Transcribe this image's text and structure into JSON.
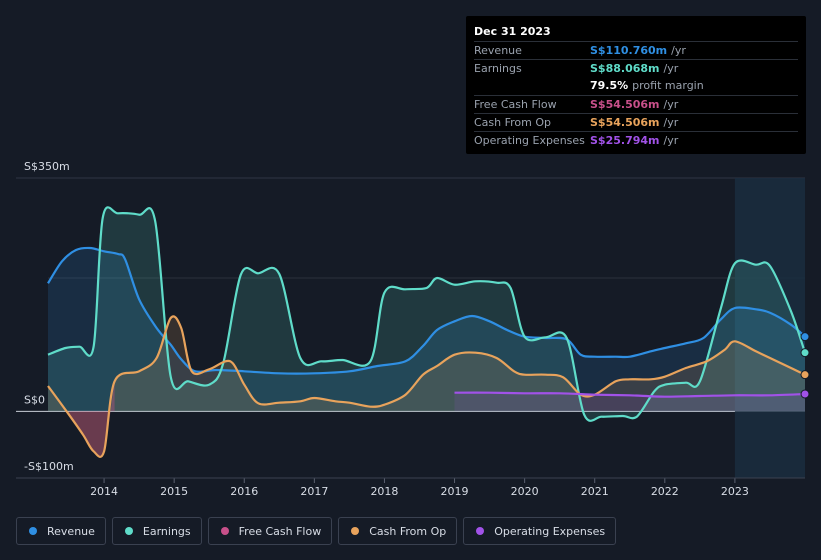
{
  "tooltip": {
    "date": "Dec 31 2023",
    "rows": [
      {
        "label": "Revenue",
        "value": "S$110.760m",
        "unit": "/yr",
        "color": "#2f8fe3"
      },
      {
        "label": "Earnings",
        "value": "S$88.068m",
        "unit": "/yr",
        "color": "#5fdcc9"
      },
      {
        "label": "",
        "value": "79.5%",
        "unit": "profit margin",
        "color": "#ffffff"
      },
      {
        "label": "Free Cash Flow",
        "value": "S$54.506m",
        "unit": "/yr",
        "color": "#c8508a"
      },
      {
        "label": "Cash From Op",
        "value": "S$54.506m",
        "unit": "/yr",
        "color": "#e8a35c"
      },
      {
        "label": "Operating Expenses",
        "value": "S$25.794m",
        "unit": "/yr",
        "color": "#a152e8"
      }
    ]
  },
  "legend": [
    {
      "label": "Revenue",
      "color": "#2f8fe3"
    },
    {
      "label": "Earnings",
      "color": "#5fdcc9"
    },
    {
      "label": "Free Cash Flow",
      "color": "#c8508a"
    },
    {
      "label": "Cash From Op",
      "color": "#e8a35c"
    },
    {
      "label": "Operating Expenses",
      "color": "#a152e8"
    }
  ],
  "chart_data": {
    "type": "area",
    "title": "",
    "y_unit": "S$m",
    "ylim": [
      -100,
      350
    ],
    "y_tick_labels": [
      {
        "value": 350,
        "label": "S$350m"
      },
      {
        "value": 0,
        "label": "S$0"
      },
      {
        "value": -100,
        "label": "-S$100m"
      }
    ],
    "xlim": [
      2013.2,
      2024.0
    ],
    "x_tick_labels": [
      "2014",
      "2015",
      "2016",
      "2017",
      "2018",
      "2019",
      "2020",
      "2021",
      "2022",
      "2023"
    ],
    "x_ticks": [
      2014,
      2015,
      2016,
      2017,
      2018,
      2019,
      2020,
      2021,
      2022,
      2023
    ],
    "highlight_from": 2023.0,
    "series": [
      {
        "name": "Revenue",
        "color": "#2f8fe3",
        "points": [
          [
            2013.2,
            192
          ],
          [
            2013.4,
            225
          ],
          [
            2013.6,
            242
          ],
          [
            2013.8,
            245
          ],
          [
            2014.0,
            240
          ],
          [
            2014.2,
            236
          ],
          [
            2014.3,
            228
          ],
          [
            2014.5,
            168
          ],
          [
            2014.75,
            125
          ],
          [
            2014.95,
            100
          ],
          [
            2015.1,
            78
          ],
          [
            2015.3,
            60
          ],
          [
            2015.6,
            62
          ],
          [
            2016.0,
            60
          ],
          [
            2016.5,
            57
          ],
          [
            2017.0,
            57
          ],
          [
            2017.5,
            60
          ],
          [
            2017.9,
            68
          ],
          [
            2018.3,
            75
          ],
          [
            2018.55,
            98
          ],
          [
            2018.75,
            122
          ],
          [
            2019.0,
            135
          ],
          [
            2019.25,
            143
          ],
          [
            2019.5,
            135
          ],
          [
            2019.75,
            122
          ],
          [
            2020.0,
            112
          ],
          [
            2020.3,
            110
          ],
          [
            2020.6,
            108
          ],
          [
            2020.8,
            85
          ],
          [
            2021.0,
            82
          ],
          [
            2021.3,
            82
          ],
          [
            2021.5,
            82
          ],
          [
            2021.8,
            90
          ],
          [
            2022.0,
            95
          ],
          [
            2022.3,
            102
          ],
          [
            2022.55,
            110
          ],
          [
            2022.8,
            138
          ],
          [
            2023.0,
            155
          ],
          [
            2023.3,
            153
          ],
          [
            2023.5,
            148
          ],
          [
            2023.8,
            130
          ],
          [
            2024.0,
            112
          ]
        ]
      },
      {
        "name": "Earnings",
        "color": "#5fdcc9",
        "points": [
          [
            2013.2,
            85
          ],
          [
            2013.45,
            95
          ],
          [
            2013.65,
            97
          ],
          [
            2013.85,
            97
          ],
          [
            2013.98,
            290
          ],
          [
            2014.2,
            297
          ],
          [
            2014.5,
            295
          ],
          [
            2014.73,
            285
          ],
          [
            2014.95,
            52
          ],
          [
            2015.2,
            45
          ],
          [
            2015.5,
            40
          ],
          [
            2015.7,
            72
          ],
          [
            2015.95,
            205
          ],
          [
            2016.2,
            207
          ],
          [
            2016.5,
            206
          ],
          [
            2016.8,
            80
          ],
          [
            2017.1,
            75
          ],
          [
            2017.4,
            77
          ],
          [
            2017.8,
            75
          ],
          [
            2018.0,
            178
          ],
          [
            2018.3,
            183
          ],
          [
            2018.6,
            185
          ],
          [
            2018.75,
            200
          ],
          [
            2019.0,
            190
          ],
          [
            2019.3,
            195
          ],
          [
            2019.6,
            193
          ],
          [
            2019.8,
            185
          ],
          [
            2020.0,
            112
          ],
          [
            2020.3,
            111
          ],
          [
            2020.6,
            110
          ],
          [
            2020.85,
            -5
          ],
          [
            2021.1,
            -8
          ],
          [
            2021.4,
            -7
          ],
          [
            2021.6,
            -8
          ],
          [
            2021.85,
            30
          ],
          [
            2022.0,
            40
          ],
          [
            2022.3,
            43
          ],
          [
            2022.5,
            45
          ],
          [
            2022.8,
            155
          ],
          [
            2023.0,
            222
          ],
          [
            2023.3,
            220
          ],
          [
            2023.5,
            218
          ],
          [
            2023.8,
            150
          ],
          [
            2024.0,
            88
          ]
        ]
      },
      {
        "name": "Free Cash Flow",
        "color": "#c8508a",
        "points": []
      },
      {
        "name": "Cash From Op",
        "color": "#e8a35c",
        "points": [
          [
            2013.2,
            38
          ],
          [
            2013.5,
            -5
          ],
          [
            2013.7,
            -35
          ],
          [
            2013.85,
            -60
          ],
          [
            2014.0,
            -60
          ],
          [
            2014.15,
            45
          ],
          [
            2014.5,
            60
          ],
          [
            2014.75,
            80
          ],
          [
            2014.95,
            140
          ],
          [
            2015.1,
            125
          ],
          [
            2015.25,
            60
          ],
          [
            2015.5,
            63
          ],
          [
            2015.8,
            75
          ],
          [
            2016.0,
            40
          ],
          [
            2016.2,
            12
          ],
          [
            2016.5,
            13
          ],
          [
            2016.8,
            15
          ],
          [
            2017.0,
            20
          ],
          [
            2017.3,
            15
          ],
          [
            2017.5,
            13
          ],
          [
            2017.8,
            7
          ],
          [
            2018.0,
            10
          ],
          [
            2018.3,
            25
          ],
          [
            2018.55,
            55
          ],
          [
            2018.75,
            68
          ],
          [
            2019.0,
            85
          ],
          [
            2019.3,
            88
          ],
          [
            2019.6,
            80
          ],
          [
            2019.85,
            60
          ],
          [
            2020.0,
            55
          ],
          [
            2020.3,
            55
          ],
          [
            2020.55,
            51
          ],
          [
            2020.8,
            25
          ],
          [
            2021.0,
            25
          ],
          [
            2021.3,
            45
          ],
          [
            2021.5,
            48
          ],
          [
            2021.8,
            48
          ],
          [
            2022.0,
            52
          ],
          [
            2022.3,
            65
          ],
          [
            2022.6,
            75
          ],
          [
            2022.85,
            92
          ],
          [
            2023.0,
            105
          ],
          [
            2023.3,
            90
          ],
          [
            2023.5,
            80
          ],
          [
            2023.8,
            65
          ],
          [
            2024.0,
            55
          ]
        ]
      },
      {
        "name": "Operating Expenses",
        "color": "#a152e8",
        "points": [
          [
            2019.0,
            28
          ],
          [
            2019.5,
            28
          ],
          [
            2020.0,
            27
          ],
          [
            2020.5,
            27
          ],
          [
            2021.0,
            25
          ],
          [
            2021.5,
            24
          ],
          [
            2022.0,
            22
          ],
          [
            2022.5,
            23
          ],
          [
            2023.0,
            24
          ],
          [
            2023.5,
            24
          ],
          [
            2024.0,
            26
          ]
        ]
      }
    ]
  }
}
